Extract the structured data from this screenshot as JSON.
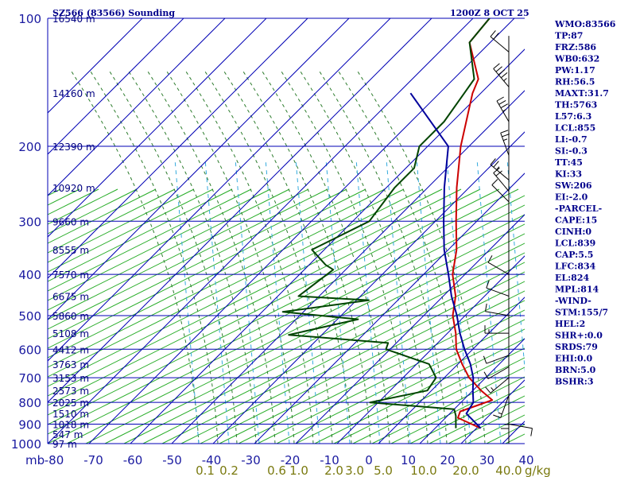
{
  "chart_data": {
    "type": "line",
    "title": "SZ566 (83566) Sounding",
    "datetime": "1200Z  8 OCT 25",
    "pressure_axis": {
      "unit_label": "mb",
      "scale": "log",
      "ticks": [
        100,
        200,
        300,
        400,
        500,
        600,
        700,
        800,
        900,
        1000
      ],
      "range": [
        100,
        1000
      ]
    },
    "temperature_axis": {
      "ticks": [
        -80,
        -70,
        -60,
        -50,
        -40,
        -30,
        -20,
        -10,
        0,
        10,
        20,
        30,
        40
      ],
      "tick_labels": [
        "-80",
        "-70",
        "-60",
        "-50",
        "-40",
        "-30",
        "-20",
        "-10",
        "0",
        "10",
        "20",
        "30",
        "40"
      ],
      "skew_note": "isotherms skewed 45 degrees"
    },
    "mixing_ratio": {
      "labels": [
        "0.1",
        "0.2",
        "0.6",
        "1.0",
        "2.0",
        "3.0",
        "5.0",
        "10.0",
        "20.0",
        "40.0"
      ],
      "unit_label": "g/kg"
    },
    "height_labels": [
      {
        "p": 100,
        "label": "16540 m"
      },
      {
        "p": 150,
        "label": "14160 m"
      },
      {
        "p": 200,
        "label": "12390 m"
      },
      {
        "p": 250,
        "label": "10920 m"
      },
      {
        "p": 300,
        "label": "9660 m"
      },
      {
        "p": 350,
        "label": "8555 m"
      },
      {
        "p": 400,
        "label": "7570 m"
      },
      {
        "p": 450,
        "label": "6675 m"
      },
      {
        "p": 500,
        "label": "5860 m"
      },
      {
        "p": 550,
        "label": "5108 m"
      },
      {
        "p": 600,
        "label": "4412 m"
      },
      {
        "p": 650,
        "label": "3763 m"
      },
      {
        "p": 700,
        "label": "3153 m"
      },
      {
        "p": 750,
        "label": "2573 m"
      },
      {
        "p": 800,
        "label": "2025 m"
      },
      {
        "p": 850,
        "label": "1510 m"
      },
      {
        "p": 900,
        "label": "1018 m"
      },
      {
        "p": 950,
        "label": "547 m"
      },
      {
        "p": 1000,
        "label": "97 m"
      }
    ],
    "series": [
      {
        "name": "",
        "role": "temperature",
        "color": "#cc0000",
        "points": [
          [
            100,
            -76
          ],
          [
            114,
            -75
          ],
          [
            139,
            -64
          ],
          [
            150,
            -62
          ],
          [
            200,
            -52
          ],
          [
            250,
            -43
          ],
          [
            300,
            -35
          ],
          [
            350,
            -28
          ],
          [
            400,
            -23
          ],
          [
            450,
            -17
          ],
          [
            500,
            -13
          ],
          [
            550,
            -8
          ],
          [
            600,
            -4
          ],
          [
            650,
            1
          ],
          [
            700,
            6
          ],
          [
            750,
            12
          ],
          [
            790,
            17
          ],
          [
            810,
            15
          ],
          [
            840,
            12
          ],
          [
            870,
            13
          ],
          [
            920,
            21
          ]
        ]
      },
      {
        "name": "",
        "role": "dewpoint",
        "color": "#004400",
        "points": [
          [
            100,
            -76
          ],
          [
            114,
            -75
          ],
          [
            139,
            -65
          ],
          [
            150,
            -64
          ],
          [
            175,
            -62
          ],
          [
            200,
            -62
          ],
          [
            225,
            -58
          ],
          [
            250,
            -58
          ],
          [
            300,
            -56
          ],
          [
            350,
            -63
          ],
          [
            380,
            -56
          ],
          [
            390,
            -53
          ],
          [
            450,
            -55
          ],
          [
            460,
            -37
          ],
          [
            490,
            -55
          ],
          [
            510,
            -35
          ],
          [
            555,
            -48
          ],
          [
            580,
            -22
          ],
          [
            600,
            -21
          ],
          [
            650,
            -7
          ],
          [
            700,
            -2
          ],
          [
            750,
            -1
          ],
          [
            800,
            -12
          ],
          [
            830,
            10
          ],
          [
            860,
            12
          ],
          [
            920,
            15
          ]
        ]
      },
      {
        "name": "",
        "role": "parcel",
        "color": "#00009c",
        "points": [
          [
            150,
            -77
          ],
          [
            200,
            -55
          ],
          [
            250,
            -46
          ],
          [
            300,
            -38
          ],
          [
            350,
            -31
          ],
          [
            400,
            -24
          ],
          [
            450,
            -18
          ],
          [
            500,
            -12
          ],
          [
            550,
            -7
          ],
          [
            600,
            -2
          ],
          [
            650,
            3
          ],
          [
            700,
            7
          ],
          [
            750,
            10
          ],
          [
            800,
            13
          ],
          [
            850,
            14
          ],
          [
            920,
            21
          ]
        ]
      }
    ],
    "wind_barbs": [
      {
        "p": 120,
        "dir": 310,
        "spd": 20
      },
      {
        "p": 145,
        "dir": 320,
        "spd": 35
      },
      {
        "p": 175,
        "dir": 330,
        "spd": 25
      },
      {
        "p": 210,
        "dir": 340,
        "spd": 15
      },
      {
        "p": 240,
        "dir": 310,
        "spd": 15
      },
      {
        "p": 255,
        "dir": 320,
        "spd": 20
      },
      {
        "p": 270,
        "dir": 315,
        "spd": 10
      },
      {
        "p": 400,
        "dir": 300,
        "spd": 10
      },
      {
        "p": 450,
        "dir": 290,
        "spd": 10
      },
      {
        "p": 500,
        "dir": 280,
        "spd": 10
      },
      {
        "p": 550,
        "dir": 270,
        "spd": 5
      },
      {
        "p": 620,
        "dir": 250,
        "spd": 10
      },
      {
        "p": 660,
        "dir": 240,
        "spd": 10
      },
      {
        "p": 700,
        "dir": 230,
        "spd": 5
      },
      {
        "p": 770,
        "dir": 200,
        "spd": 5
      },
      {
        "p": 810,
        "dir": 180,
        "spd": 5
      },
      {
        "p": 900,
        "dir": 100,
        "spd": 10
      }
    ],
    "indices": [
      "WMO:83566",
      "TP:87",
      "FRZ:586",
      "WB0:632",
      "PW:1.17",
      "RH:56.5",
      "MAXT:31.7",
      "TH:5763",
      "L57:6.3",
      "LCL:855",
      "LI:-0.7",
      "SI:-0.3",
      "TT:45",
      "KI:33",
      "SW:206",
      "EI:-2.0",
      "-PARCEL-",
      "CAPE:15",
      "CINH:0",
      "LCL:839",
      "CAP:5.5",
      "LFC:834",
      "EL:824",
      "MPL:814",
      "-WIND-",
      "STM:155/7",
      "HEL:2",
      "SHR+:0.0",
      "SRDS:79",
      "EHI:0.0",
      "BRN:5.0",
      "BSHR:3"
    ],
    "colors": {
      "isobar": "#0000b4",
      "isotherm": "#0000b4",
      "dry_adiabat": "#22aa22",
      "moist_adiabat": "#2e7d2e",
      "mixing_ratio_line": "#33aadd"
    }
  }
}
